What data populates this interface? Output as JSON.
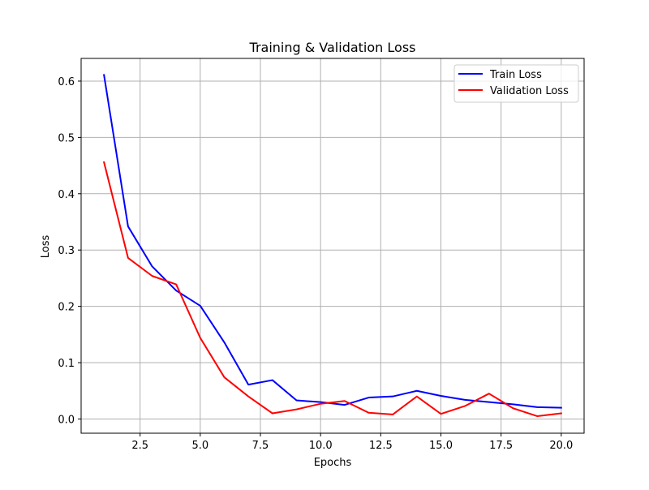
{
  "chart_data": {
    "type": "line",
    "title": "Training & Validation Loss",
    "xlabel": "Epochs",
    "ylabel": "Loss",
    "xlim": [
      0.05,
      20.95
    ],
    "ylim": [
      -0.0253,
      0.6403
    ],
    "xticks": [
      2.5,
      5.0,
      7.5,
      10.0,
      12.5,
      15.0,
      17.5,
      20.0
    ],
    "xtick_labels": [
      "2.5",
      "5.0",
      "7.5",
      "10.0",
      "12.5",
      "15.0",
      "17.5",
      "20.0"
    ],
    "yticks": [
      0.0,
      0.1,
      0.2,
      0.3,
      0.4,
      0.5,
      0.6
    ],
    "ytick_labels": [
      "0.0",
      "0.1",
      "0.2",
      "0.3",
      "0.4",
      "0.5",
      "0.6"
    ],
    "grid": true,
    "legend_position": "top-right",
    "x": [
      1,
      2,
      3,
      4,
      5,
      6,
      7,
      8,
      9,
      10,
      11,
      12,
      13,
      14,
      15,
      16,
      17,
      18,
      19,
      20
    ],
    "series": [
      {
        "name": "Train Loss",
        "color": "#0000ff",
        "values": [
          0.611,
          0.342,
          0.271,
          0.228,
          0.201,
          0.136,
          0.061,
          0.069,
          0.033,
          0.03,
          0.025,
          0.038,
          0.04,
          0.05,
          0.041,
          0.034,
          0.03,
          0.026,
          0.021,
          0.02
        ]
      },
      {
        "name": "Validation Loss",
        "color": "#ff0000",
        "values": [
          0.456,
          0.286,
          0.254,
          0.239,
          0.144,
          0.074,
          0.04,
          0.01,
          0.017,
          0.027,
          0.032,
          0.011,
          0.008,
          0.04,
          0.009,
          0.023,
          0.045,
          0.019,
          0.005,
          0.01
        ]
      }
    ]
  }
}
